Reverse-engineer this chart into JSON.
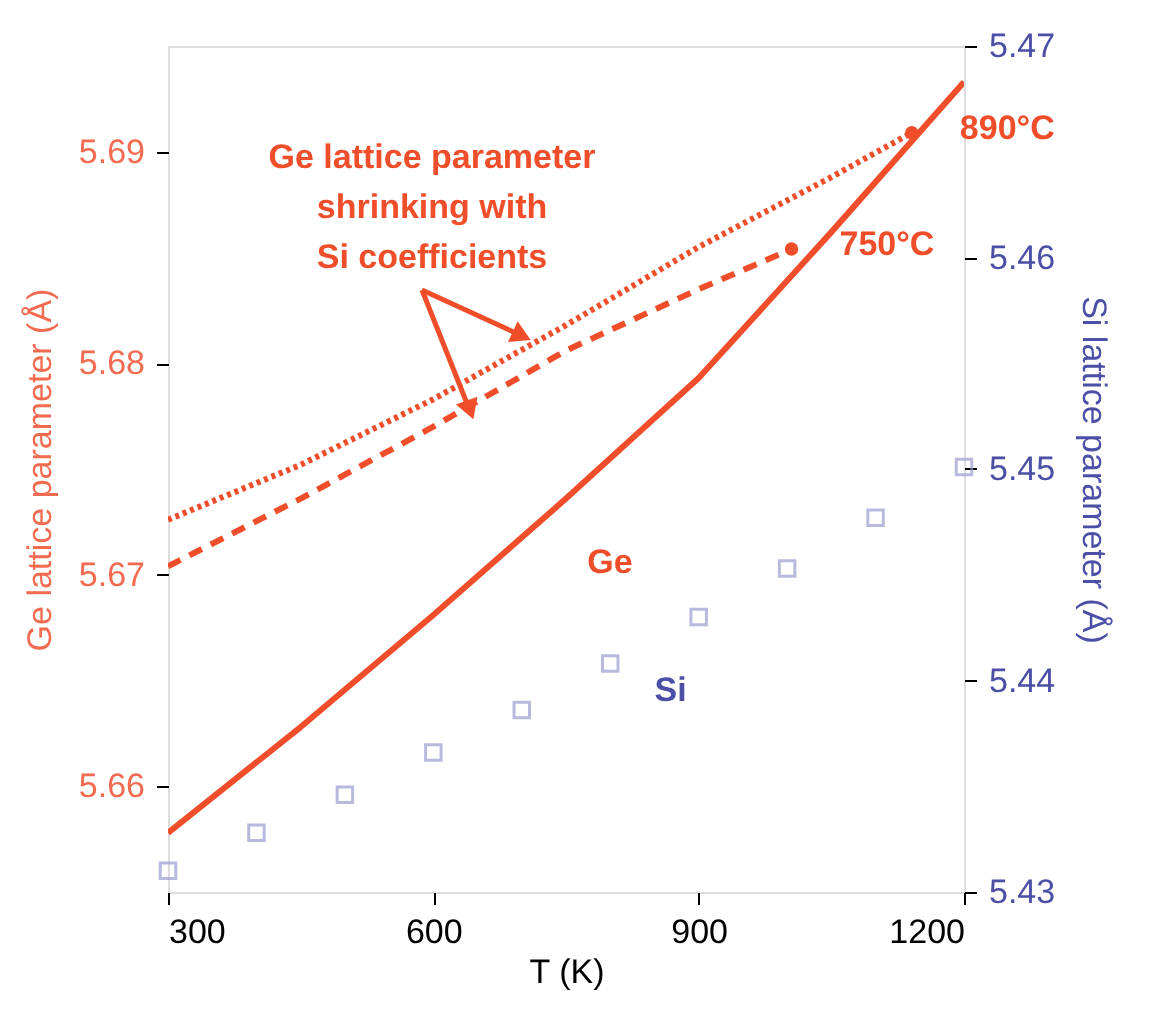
{
  "chart_data": {
    "type": "line",
    "xlabel": "T (K)",
    "ylabel": "Ge lattice parameter (Å)",
    "y2label": "Si lattice parameter (Å)",
    "xlim": [
      300,
      1200
    ],
    "xticks": [
      300,
      600,
      900,
      1200
    ],
    "ylim": [
      5.655,
      5.695
    ],
    "yticks": [
      5.66,
      5.67,
      5.68,
      5.69
    ],
    "y2lim": [
      5.43,
      5.47
    ],
    "y2ticks": [
      5.43,
      5.44,
      5.45,
      5.46,
      5.47
    ],
    "grid": false,
    "annotations": [
      {
        "text": "Ge lattice parameter\nshrinking with\nSi coefficients",
        "x": 700,
        "y": 5.6813
      },
      {
        "text": "890°C",
        "x": 1141,
        "y": 5.6909
      },
      {
        "text": "750°C",
        "x": 1005,
        "y": 5.6854
      }
    ],
    "series": [
      {
        "name": "Ge",
        "color": "#f04e2a",
        "line_style": "solid",
        "x": [
          300,
          450,
          600,
          750,
          900,
          1050,
          1200
        ],
        "values": [
          5.6578,
          5.6628,
          5.6681,
          5.6736,
          5.6793,
          5.6862,
          5.6933
        ]
      },
      {
        "color": "#f04e2a",
        "line_style": "dotted",
        "x": [
          300,
          450,
          600,
          750,
          900,
          1050,
          1141
        ],
        "values": [
          5.6726,
          5.6752,
          5.6783,
          5.6818,
          5.6855,
          5.6888,
          5.6909
        ]
      },
      {
        "color": "#f04e2a",
        "line_style": "dashed",
        "x": [
          300,
          450,
          600,
          750,
          900,
          1005
        ],
        "values": [
          5.6704,
          5.6736,
          5.677,
          5.6806,
          5.6835,
          5.6854
        ]
      },
      {
        "name": "Si",
        "type": "scatter",
        "axis": "y2",
        "marker": "square",
        "color": "#9a9dd0",
        "x": [
          300,
          400,
          500,
          600,
          700,
          800,
          900,
          1000,
          1100,
          1200
        ],
        "values": [
          5.431,
          5.4328,
          5.4346,
          5.4366,
          5.4386,
          5.4408,
          5.443,
          5.4453,
          5.4477,
          5.4501
        ]
      }
    ]
  }
}
